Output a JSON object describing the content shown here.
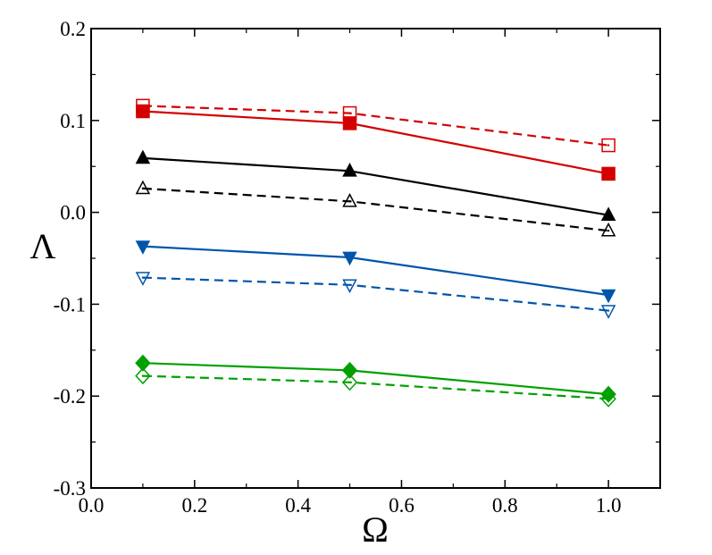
{
  "chart_data": {
    "type": "line",
    "title": "",
    "xlabel": "Ω",
    "ylabel": "Λ",
    "xlim": [
      0.0,
      1.1
    ],
    "ylim": [
      -0.3,
      0.2
    ],
    "x_ticks": [
      0.0,
      0.2,
      0.4,
      0.6,
      0.8,
      1.0
    ],
    "x_tick_labels": [
      "0.0",
      "0.2",
      "0.4",
      "0.6",
      "0.8",
      "1.0"
    ],
    "y_ticks": [
      -0.3,
      -0.2,
      -0.1,
      0.0,
      0.1,
      0.2
    ],
    "y_tick_labels": [
      "-0.3",
      "-0.2",
      "-0.1",
      "0.0",
      "0.1",
      "0.2"
    ],
    "x": [
      0.1,
      0.5,
      1.0
    ],
    "grid": false,
    "legend": "none",
    "series": [
      {
        "name": "red-solid-filled-square",
        "color": "#d40000",
        "dash": "solid",
        "marker": "square",
        "filled": true,
        "values": [
          0.11,
          0.097,
          0.042
        ]
      },
      {
        "name": "red-dashed-open-square",
        "color": "#d40000",
        "dash": "dashed",
        "marker": "square",
        "filled": false,
        "values": [
          0.116,
          0.108,
          0.073
        ]
      },
      {
        "name": "black-solid-filled-triangle-up",
        "color": "#000000",
        "dash": "solid",
        "marker": "triangle-up",
        "filled": true,
        "values": [
          0.059,
          0.045,
          -0.003
        ]
      },
      {
        "name": "black-dashed-open-triangle-up",
        "color": "#000000",
        "dash": "dashed",
        "marker": "triangle-up",
        "filled": false,
        "values": [
          0.026,
          0.012,
          -0.02
        ]
      },
      {
        "name": "blue-solid-filled-triangle-down",
        "color": "#0055aa",
        "dash": "solid",
        "marker": "triangle-down",
        "filled": true,
        "values": [
          -0.037,
          -0.049,
          -0.09
        ]
      },
      {
        "name": "blue-dashed-open-triangle-down",
        "color": "#0055aa",
        "dash": "dashed",
        "marker": "triangle-down",
        "filled": false,
        "values": [
          -0.071,
          -0.079,
          -0.107
        ]
      },
      {
        "name": "green-solid-filled-diamond",
        "color": "#00a000",
        "dash": "solid",
        "marker": "diamond",
        "filled": true,
        "values": [
          -0.164,
          -0.172,
          -0.198
        ]
      },
      {
        "name": "green-dashed-open-diamond",
        "color": "#00a000",
        "dash": "dashed",
        "marker": "diamond",
        "filled": false,
        "values": [
          -0.178,
          -0.185,
          -0.203
        ]
      }
    ]
  }
}
